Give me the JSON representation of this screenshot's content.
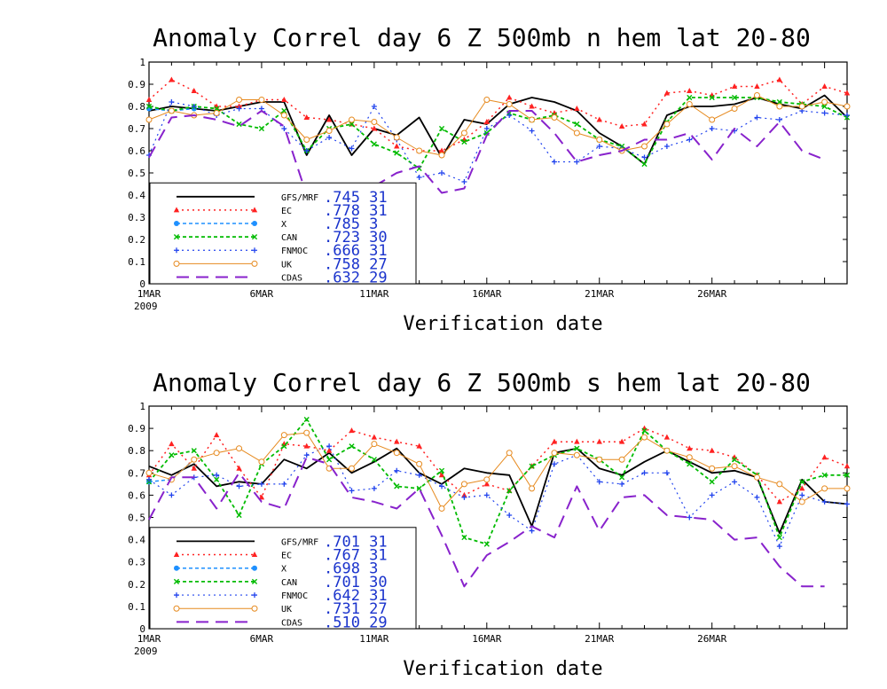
{
  "chart_data": [
    {
      "type": "line",
      "title": "Anomaly Correl  day 6  Z 500mb  n hem  lat 20-80",
      "xlabel": "Verification date",
      "ylabel": "",
      "xlim": [
        1,
        32
      ],
      "ylim": [
        0,
        1
      ],
      "ytick_labels": [
        "0",
        "0.1",
        "0.2",
        "0.3",
        "0.4",
        "0.5",
        "0.6",
        "0.7",
        "0.8",
        "0.9",
        "1"
      ],
      "xtick_labels": [
        {
          "x": 1,
          "label": "1MAR",
          "sub": "2009"
        },
        {
          "x": 6,
          "label": "6MAR"
        },
        {
          "x": 11,
          "label": "11MAR"
        },
        {
          "x": 16,
          "label": "16MAR"
        },
        {
          "x": 21,
          "label": "21MAR"
        },
        {
          "x": 26,
          "label": "26MAR"
        }
      ],
      "legend_placement": "bottom-left",
      "series": [
        {
          "name": "GFS/MRF",
          "stat": ".745  31",
          "color": "#000000",
          "x": [
            1,
            2,
            3,
            4,
            5,
            6,
            7,
            8,
            9,
            10,
            11,
            12,
            13,
            14,
            15,
            16,
            17,
            18,
            19,
            20,
            21,
            22,
            23,
            24,
            25,
            26,
            27,
            28,
            29,
            30,
            31,
            32
          ],
          "y": [
            0.78,
            0.8,
            0.79,
            0.78,
            0.8,
            0.82,
            0.82,
            0.58,
            0.76,
            0.58,
            0.7,
            0.67,
            0.75,
            0.57,
            0.74,
            0.72,
            0.81,
            0.84,
            0.82,
            0.78,
            0.68,
            0.62,
            0.54,
            0.76,
            0.8,
            0.8,
            0.81,
            0.84,
            0.81,
            0.79,
            0.85,
            0.75
          ]
        },
        {
          "name": "EC",
          "stat": ".778  31",
          "color": "#ff2222",
          "x": [
            1,
            2,
            3,
            4,
            5,
            6,
            7,
            8,
            9,
            10,
            11,
            12,
            13,
            14,
            15,
            16,
            17,
            18,
            19,
            20,
            21,
            22,
            23,
            24,
            25,
            26,
            27,
            28,
            29,
            30,
            31,
            32
          ],
          "y": [
            0.83,
            0.92,
            0.87,
            0.8,
            0.8,
            0.83,
            0.83,
            0.75,
            0.74,
            0.72,
            0.7,
            0.62,
            0.6,
            0.6,
            0.65,
            0.73,
            0.84,
            0.8,
            0.77,
            0.79,
            0.74,
            0.71,
            0.72,
            0.86,
            0.87,
            0.85,
            0.89,
            0.89,
            0.92,
            0.81,
            0.89,
            0.86
          ]
        },
        {
          "name": "X",
          "stat": ".785   3",
          "color": "#1e90ff",
          "x": [
            1,
            2,
            3
          ],
          "y": [
            0.79,
            0.78,
            0.79
          ]
        },
        {
          "name": "CAN",
          "stat": ".723  30",
          "color": "#00bb00",
          "x": [
            1,
            2,
            3,
            4,
            5,
            6,
            7,
            8,
            9,
            10,
            11,
            12,
            13,
            14,
            15,
            16,
            17,
            18,
            19,
            20,
            21,
            22,
            23,
            24,
            25,
            26,
            27,
            28,
            29,
            30,
            31,
            32
          ],
          "y": [
            0.8,
            0.78,
            0.8,
            0.79,
            0.72,
            0.7,
            0.78,
            0.6,
            0.7,
            0.72,
            0.63,
            0.59,
            0.52,
            0.7,
            0.64,
            0.68,
            0.77,
            0.74,
            0.76,
            0.72,
            0.65,
            0.62,
            0.54,
            0.73,
            0.84,
            0.84,
            0.84,
            0.84,
            0.82,
            0.81,
            0.8,
            0.75
          ]
        },
        {
          "name": "FNMOC",
          "stat": ".666  31",
          "color": "#2244ee",
          "x": [
            1,
            2,
            3,
            4,
            5,
            6,
            7,
            8,
            9,
            10,
            11,
            12,
            13,
            14,
            15,
            16,
            17,
            18,
            19,
            20,
            21,
            22,
            23,
            24,
            25,
            26,
            27,
            28,
            29,
            30,
            31,
            32
          ],
          "y": [
            0.58,
            0.82,
            0.8,
            0.76,
            0.79,
            0.79,
            0.7,
            0.6,
            0.66,
            0.61,
            0.8,
            0.65,
            0.48,
            0.5,
            0.46,
            0.7,
            0.76,
            0.69,
            0.55,
            0.55,
            0.62,
            0.61,
            0.57,
            0.62,
            0.65,
            0.7,
            0.69,
            0.75,
            0.74,
            0.78,
            0.77,
            0.76
          ]
        },
        {
          "name": "UK",
          "stat": ".758  27",
          "color": "#e68a1f",
          "x": [
            1,
            2,
            3,
            4,
            5,
            6,
            7,
            8,
            9,
            10,
            11,
            12,
            13,
            14,
            15,
            16,
            17,
            18,
            19,
            20,
            21,
            22,
            23,
            24,
            25,
            26,
            27,
            28,
            29,
            30,
            31,
            32
          ],
          "y": [
            0.74,
            0.78,
            0.76,
            0.77,
            0.83,
            0.83,
            0.76,
            0.65,
            0.69,
            0.74,
            0.73,
            0.66,
            0.6,
            0.58,
            0.68,
            0.83,
            0.81,
            0.74,
            0.75,
            0.68,
            0.65,
            0.6,
            0.62,
            0.72,
            0.81,
            0.74,
            0.79,
            0.85,
            0.8,
            0.8,
            0.82,
            0.8
          ]
        },
        {
          "name": "CDAS",
          "stat": ".632  29",
          "color": "#8822cc",
          "x": [
            1,
            2,
            3,
            4,
            5,
            6,
            7,
            8,
            9,
            10,
            11,
            12,
            13,
            14,
            15,
            16,
            17,
            18,
            19,
            20,
            21,
            22,
            23,
            24,
            25,
            26,
            27,
            28,
            29,
            30,
            31
          ],
          "y": [
            0.57,
            0.75,
            0.76,
            0.74,
            0.71,
            0.78,
            0.71,
            0.4,
            0.45,
            0.45,
            0.44,
            0.5,
            0.53,
            0.41,
            0.43,
            0.67,
            0.78,
            0.78,
            0.68,
            0.55,
            0.58,
            0.6,
            0.65,
            0.65,
            0.68,
            0.56,
            0.7,
            0.62,
            0.73,
            0.6,
            0.56
          ]
        }
      ]
    },
    {
      "type": "line",
      "title": "Anomaly Correl  day 6  Z 500mb  s hem  lat 20-80",
      "xlabel": "Verification date",
      "ylabel": "",
      "xlim": [
        1,
        32
      ],
      "ylim": [
        0,
        1
      ],
      "ytick_labels": [
        "0",
        "0.1",
        "0.2",
        "0.3",
        "0.4",
        "0.5",
        "0.6",
        "0.7",
        "0.8",
        "0.9",
        "1"
      ],
      "xtick_labels": [
        {
          "x": 1,
          "label": "1MAR",
          "sub": "2009"
        },
        {
          "x": 6,
          "label": "6MAR"
        },
        {
          "x": 11,
          "label": "11MAR"
        },
        {
          "x": 16,
          "label": "16MAR"
        },
        {
          "x": 21,
          "label": "21MAR"
        },
        {
          "x": 26,
          "label": "26MAR"
        }
      ],
      "legend_placement": "bottom-left",
      "series": [
        {
          "name": "GFS/MRF",
          "stat": ".701  31",
          "color": "#000000",
          "x": [
            1,
            2,
            3,
            4,
            5,
            6,
            7,
            8,
            9,
            10,
            11,
            12,
            13,
            14,
            15,
            16,
            17,
            18,
            19,
            20,
            21,
            22,
            23,
            24,
            25,
            26,
            27,
            28,
            29,
            30,
            31,
            32
          ],
          "y": [
            0.73,
            0.69,
            0.74,
            0.64,
            0.66,
            0.65,
            0.76,
            0.72,
            0.79,
            0.7,
            0.75,
            0.81,
            0.7,
            0.65,
            0.72,
            0.7,
            0.69,
            0.46,
            0.79,
            0.81,
            0.72,
            0.69,
            0.75,
            0.8,
            0.75,
            0.7,
            0.71,
            0.68,
            0.43,
            0.67,
            0.57,
            0.56
          ]
        },
        {
          "name": "EC",
          "stat": ".767  31",
          "color": "#ff2222",
          "x": [
            1,
            2,
            3,
            4,
            5,
            6,
            7,
            8,
            9,
            10,
            11,
            12,
            13,
            14,
            15,
            16,
            17,
            18,
            19,
            20,
            21,
            22,
            23,
            24,
            25,
            26,
            27,
            28,
            29,
            30,
            31,
            32
          ],
          "y": [
            0.69,
            0.83,
            0.72,
            0.87,
            0.72,
            0.59,
            0.83,
            0.82,
            0.8,
            0.89,
            0.86,
            0.84,
            0.82,
            0.69,
            0.6,
            0.65,
            0.62,
            0.73,
            0.84,
            0.84,
            0.84,
            0.84,
            0.9,
            0.86,
            0.81,
            0.8,
            0.77,
            0.69,
            0.57,
            0.63,
            0.77,
            0.73
          ]
        },
        {
          "name": "X",
          "stat": ".698   3",
          "color": "#1e90ff",
          "x": [
            1,
            2,
            3
          ],
          "y": [
            0.66,
            0.67,
            0.76
          ]
        },
        {
          "name": "CAN",
          "stat": ".701  30",
          "color": "#00bb00",
          "x": [
            1,
            2,
            3,
            4,
            5,
            6,
            7,
            8,
            9,
            10,
            11,
            12,
            13,
            14,
            15,
            16,
            17,
            18,
            19,
            20,
            21,
            22,
            23,
            24,
            25,
            26,
            27,
            28,
            29,
            30,
            31,
            32
          ],
          "y": [
            0.66,
            0.78,
            0.8,
            0.67,
            0.51,
            0.74,
            0.82,
            0.94,
            0.76,
            0.82,
            0.76,
            0.64,
            0.63,
            0.71,
            0.41,
            0.38,
            0.62,
            0.73,
            0.78,
            0.81,
            0.76,
            0.68,
            0.89,
            0.8,
            0.74,
            0.66,
            0.76,
            0.69,
            0.41,
            0.66,
            0.69,
            0.69
          ]
        },
        {
          "name": "FNMOC",
          "stat": ".642  31",
          "color": "#2244ee",
          "x": [
            1,
            2,
            3,
            4,
            5,
            6,
            7,
            8,
            9,
            10,
            11,
            12,
            13,
            14,
            15,
            16,
            17,
            18,
            19,
            20,
            21,
            22,
            23,
            24,
            25,
            26,
            27,
            28,
            29,
            30,
            31,
            32
          ],
          "y": [
            0.67,
            0.6,
            0.68,
            0.69,
            0.64,
            0.65,
            0.65,
            0.78,
            0.82,
            0.62,
            0.63,
            0.71,
            0.69,
            0.64,
            0.59,
            0.6,
            0.51,
            0.44,
            0.74,
            0.78,
            0.66,
            0.65,
            0.7,
            0.7,
            0.5,
            0.6,
            0.66,
            0.59,
            0.37,
            0.6,
            0.57,
            0.56
          ]
        },
        {
          "name": "UK",
          "stat": ".731  27",
          "color": "#e68a1f",
          "x": [
            1,
            2,
            3,
            4,
            5,
            6,
            7,
            8,
            9,
            10,
            11,
            12,
            13,
            14,
            15,
            16,
            17,
            18,
            19,
            20,
            21,
            22,
            23,
            24,
            25,
            26,
            27,
            28,
            29,
            30,
            31,
            32
          ],
          "y": [
            0.7,
            0.67,
            0.76,
            0.79,
            0.81,
            0.75,
            0.87,
            0.88,
            0.72,
            0.72,
            0.83,
            0.79,
            0.74,
            0.54,
            0.65,
            0.67,
            0.79,
            0.63,
            0.79,
            0.78,
            0.76,
            0.76,
            0.86,
            0.8,
            0.77,
            0.72,
            0.73,
            0.68,
            0.65,
            0.57,
            0.63,
            0.63
          ]
        },
        {
          "name": "CDAS",
          "stat": ".510  29",
          "color": "#8822cc",
          "x": [
            1,
            2,
            3,
            4,
            5,
            6,
            7,
            8,
            9,
            10,
            11,
            12,
            13,
            14,
            15,
            16,
            17,
            18,
            19,
            20,
            21,
            22,
            23,
            24,
            25,
            26,
            27,
            28,
            29,
            30,
            31
          ],
          "y": [
            0.49,
            0.68,
            0.68,
            0.54,
            0.7,
            0.57,
            0.54,
            0.77,
            0.74,
            0.59,
            0.57,
            0.54,
            0.63,
            0.42,
            0.19,
            0.33,
            0.39,
            0.46,
            0.41,
            0.64,
            0.44,
            0.59,
            0.6,
            0.51,
            0.5,
            0.49,
            0.4,
            0.41,
            0.28,
            0.19,
            0.19
          ]
        }
      ]
    }
  ]
}
